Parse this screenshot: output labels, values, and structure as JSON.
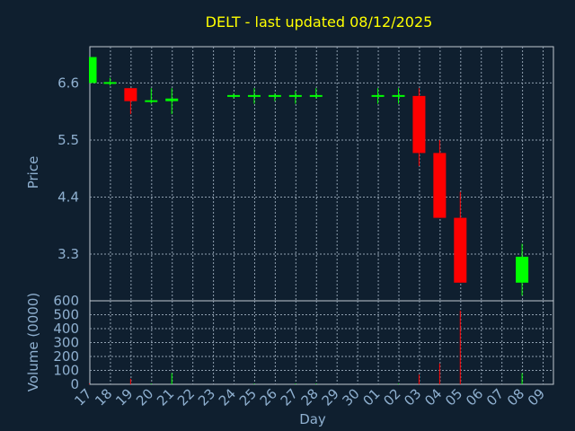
{
  "chart_data": [
    {
      "type": "candlestick",
      "title": "DELT - last updated 08/12/2025",
      "xlabel": "Day",
      "ylabel": "Price",
      "ylim": [
        2.4,
        7.3
      ],
      "yticks": [
        "6.6",
        "5.5",
        "4.4",
        "3.3"
      ],
      "grid": true,
      "categories": [
        "17",
        "18",
        "19",
        "20",
        "21",
        "22",
        "23",
        "24",
        "25",
        "26",
        "27",
        "28",
        "29",
        "30",
        "01",
        "02",
        "03",
        "04",
        "05",
        "06",
        "07",
        "08",
        "09"
      ],
      "candles": [
        {
          "x": "17",
          "open": 6.6,
          "close": 7.1,
          "high": 7.1,
          "low": 6.6
        },
        {
          "x": "18",
          "open": 6.6,
          "close": 6.6,
          "high": 6.7,
          "low": 6.55
        },
        {
          "x": "19",
          "open": 6.5,
          "close": 6.25,
          "high": 6.5,
          "low": 6.0
        },
        {
          "x": "20",
          "open": 6.25,
          "close": 6.25,
          "high": 6.5,
          "low": 6.2
        },
        {
          "x": "21",
          "open": 6.25,
          "close": 6.3,
          "high": 6.5,
          "low": 6.0
        },
        {
          "x": "24",
          "open": 6.35,
          "close": 6.35,
          "high": 6.4,
          "low": 6.3
        },
        {
          "x": "25",
          "open": 6.35,
          "close": 6.35,
          "high": 6.5,
          "low": 6.2
        },
        {
          "x": "26",
          "open": 6.35,
          "close": 6.35,
          "high": 6.4,
          "low": 6.25
        },
        {
          "x": "27",
          "open": 6.35,
          "close": 6.35,
          "high": 6.45,
          "low": 6.2
        },
        {
          "x": "28",
          "open": 6.35,
          "close": 6.35,
          "high": 6.5,
          "low": 6.3
        },
        {
          "x": "01",
          "open": 6.35,
          "close": 6.35,
          "high": 6.5,
          "low": 6.2
        },
        {
          "x": "02",
          "open": 6.35,
          "close": 6.35,
          "high": 6.5,
          "low": 6.2
        },
        {
          "x": "03",
          "open": 6.35,
          "close": 5.25,
          "high": 6.5,
          "low": 5.0
        },
        {
          "x": "04",
          "open": 5.25,
          "close": 4.0,
          "high": 5.5,
          "low": 4.0
        },
        {
          "x": "05",
          "open": 4.0,
          "close": 2.75,
          "high": 4.5,
          "low": 2.75
        },
        {
          "x": "08",
          "open": 2.75,
          "close": 3.25,
          "high": 3.5,
          "low": 2.5
        }
      ]
    },
    {
      "type": "bar",
      "xlabel": "Day",
      "ylabel": "Volume (0000)",
      "ylim": [
        0,
        600
      ],
      "yticks": [
        "600",
        "500",
        "400",
        "300",
        "200",
        "100",
        "0"
      ],
      "grid": true,
      "categories": [
        "17",
        "18",
        "19",
        "20",
        "21",
        "22",
        "23",
        "24",
        "25",
        "26",
        "27",
        "28",
        "29",
        "30",
        "01",
        "02",
        "03",
        "04",
        "05",
        "06",
        "07",
        "08",
        "09"
      ],
      "values": [
        {
          "x": "17",
          "value": 5,
          "color": "#ff0000"
        },
        {
          "x": "19",
          "value": 40,
          "color": "#ff0000"
        },
        {
          "x": "20",
          "value": 5,
          "color": "#00ff00"
        },
        {
          "x": "21",
          "value": 80,
          "color": "#00ff00"
        },
        {
          "x": "25",
          "value": 5,
          "color": "#00ff00"
        },
        {
          "x": "27",
          "value": 5,
          "color": "#00ff00"
        },
        {
          "x": "28",
          "value": 5,
          "color": "#00ff00"
        },
        {
          "x": "02",
          "value": 5,
          "color": "#00ff00"
        },
        {
          "x": "03",
          "value": 70,
          "color": "#ff0000"
        },
        {
          "x": "04",
          "value": 150,
          "color": "#ff0000"
        },
        {
          "x": "05",
          "value": 530,
          "color": "#ff0000"
        },
        {
          "x": "08",
          "value": 80,
          "color": "#00ff00"
        }
      ]
    }
  ],
  "colors": {
    "background": "#0f1f2f",
    "up": "#00ff00",
    "down": "#ff0000",
    "title": "#ffff00",
    "axis_text": "#8fb0d0",
    "grid": "#8f9faf",
    "axis_line": "#c0c8d0"
  }
}
